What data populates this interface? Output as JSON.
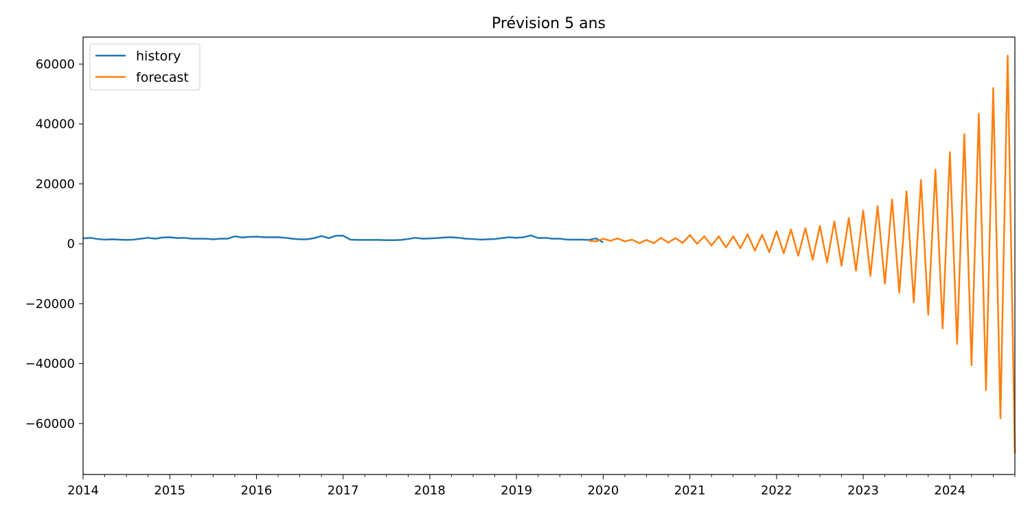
{
  "chart_data": {
    "type": "line",
    "title": "Prévision 5 ans",
    "xlabel": "",
    "ylabel": "",
    "xlim": [
      "2014-01",
      "2024-10"
    ],
    "ylim": [
      -77000,
      69000
    ],
    "yticks": [
      -60000,
      -40000,
      -20000,
      0,
      20000,
      40000,
      60000
    ],
    "ytick_labels": [
      "−60000",
      "−40000",
      "−20000",
      "0",
      "20000",
      "40000",
      "60000"
    ],
    "xticks": [
      "2014-01",
      "2015-01",
      "2016-01",
      "2017-01",
      "2018-01",
      "2019-01",
      "2020-01",
      "2021-01",
      "2022-01",
      "2023-01",
      "2024-01"
    ],
    "xtick_labels": [
      "2014",
      "2015",
      "2016",
      "2017",
      "2018",
      "2019",
      "2020",
      "2021",
      "2022",
      "2023",
      "2024"
    ],
    "grid": false,
    "legend": {
      "position": "top-left",
      "entries": [
        "history",
        "forecast"
      ]
    },
    "series": [
      {
        "name": "history",
        "color": "#1f77b4",
        "start": "2014-01",
        "values": [
          1800,
          2000,
          1600,
          1400,
          1500,
          1400,
          1300,
          1400,
          1700,
          2000,
          1700,
          2100,
          2200,
          1900,
          2000,
          1700,
          1700,
          1700,
          1500,
          1700,
          1700,
          2500,
          2100,
          2300,
          2400,
          2200,
          2200,
          2200,
          2000,
          1700,
          1500,
          1500,
          1900,
          2600,
          1900,
          2700,
          2700,
          1400,
          1300,
          1300,
          1300,
          1300,
          1200,
          1200,
          1300,
          1600,
          2000,
          1700,
          1800,
          1900,
          2100,
          2200,
          2000,
          1700,
          1600,
          1400,
          1500,
          1600,
          1900,
          2200,
          2000,
          2200,
          2800,
          1900,
          2000,
          1700,
          1700,
          1400,
          1400,
          1400,
          1300,
          1800,
          500
        ]
      },
      {
        "name": "forecast",
        "color": "#ff7f0e",
        "start": "2019-11",
        "values": [
          1000,
          800,
          1700,
          1000,
          1800,
          800,
          1400,
          200,
          1300,
          200,
          2000,
          400,
          1900,
          300,
          2900,
          0,
          2500,
          -600,
          2500,
          -1200,
          2500,
          -1500,
          3200,
          -2300,
          3000,
          -2800,
          4200,
          -3200,
          4800,
          -4000,
          5200,
          -5300,
          6000,
          -6200,
          7500,
          -7300,
          8600,
          -9000,
          11100,
          -10700,
          12600,
          -13300,
          14800,
          -16300,
          17500,
          -19600,
          21300,
          -23700,
          24800,
          -28200,
          30600,
          -33400,
          36600,
          -40500,
          43400,
          -48800,
          52000,
          -58300,
          62800,
          -70000
        ]
      }
    ]
  }
}
